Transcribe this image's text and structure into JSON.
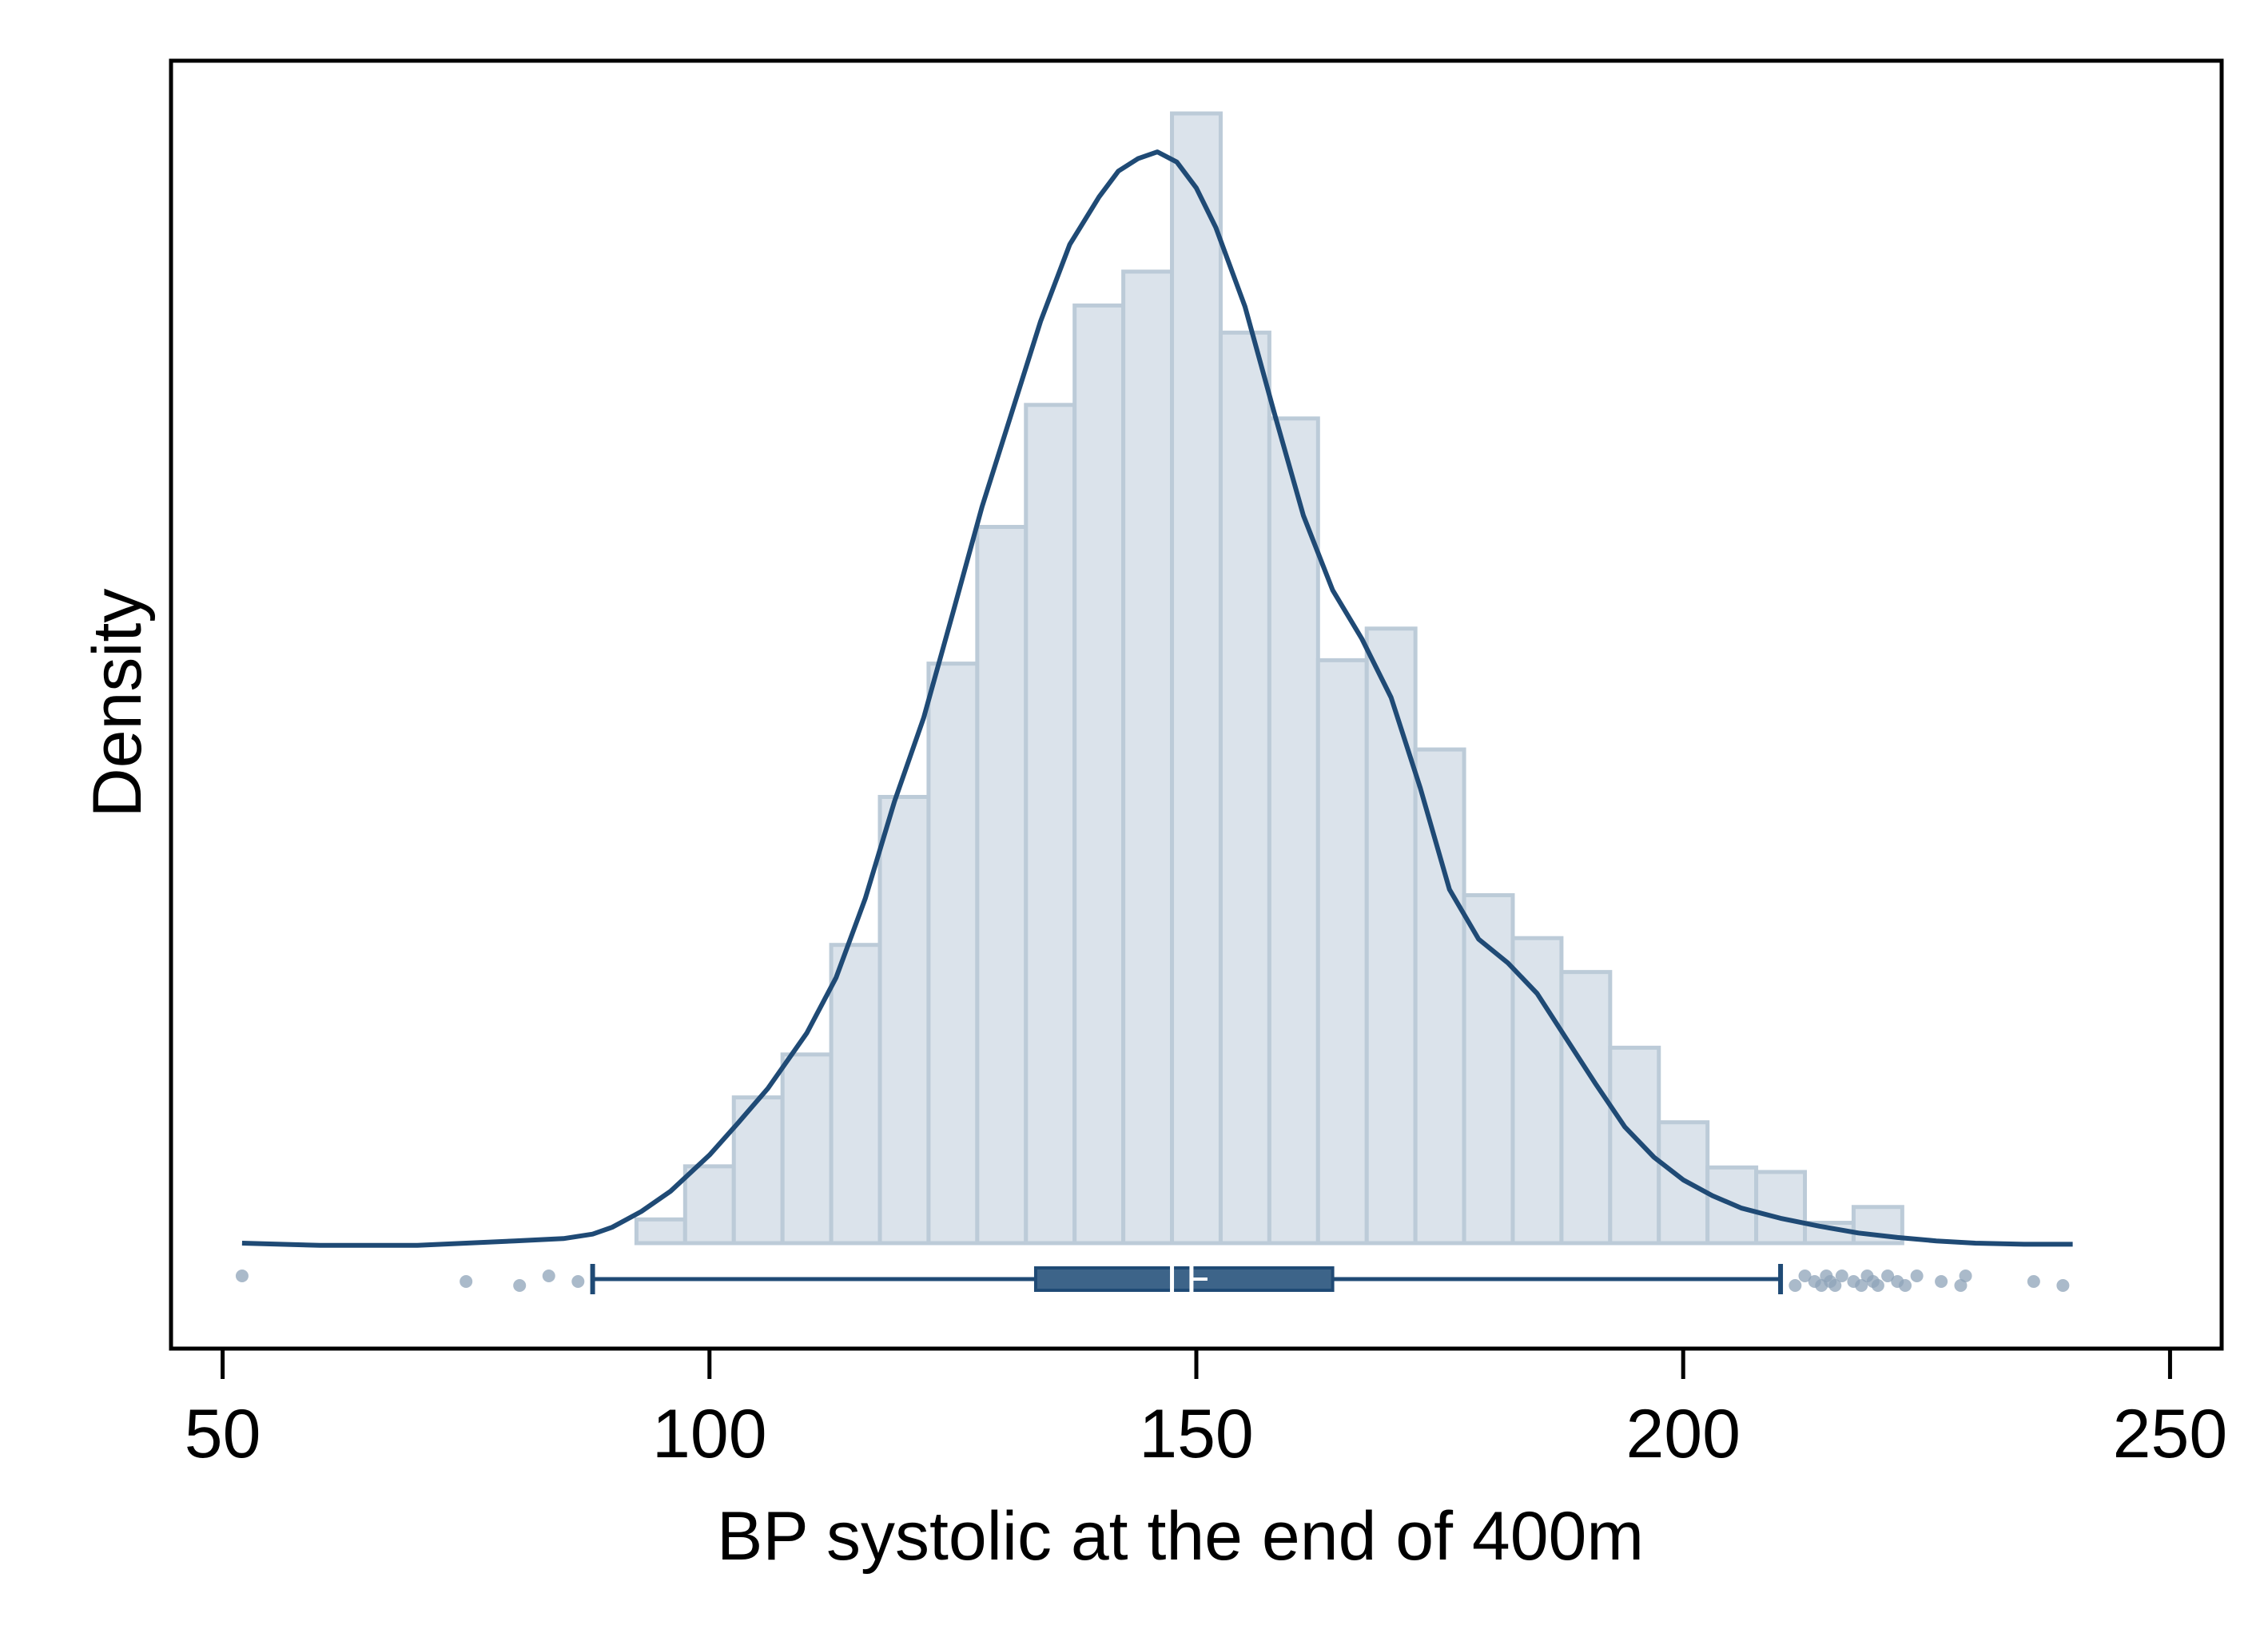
{
  "chart_data": {
    "type": "histogram",
    "xlabel": "BP systolic at the end of 400m",
    "ylabel": "Density",
    "xlim": [
      44.7,
      255.3
    ],
    "x_ticks": [
      50,
      100,
      150,
      200,
      250
    ],
    "y_ticks_shown": false,
    "grid": false,
    "legend": "none",
    "histogram": {
      "bin_start": 87.5,
      "bin_width": 5,
      "relative_heights": [
        0.0,
        0.021,
        0.068,
        0.129,
        0.167,
        0.264,
        0.395,
        0.513,
        0.634,
        0.742,
        0.83,
        0.86,
        1.0,
        0.806,
        0.73,
        0.516,
        0.544,
        0.437,
        0.308,
        0.27,
        0.24,
        0.173,
        0.107,
        0.067,
        0.063,
        0.018,
        0.032,
        0.0
      ]
    },
    "density_curve": {
      "x": [
        52,
        60,
        70,
        80,
        85,
        88,
        90,
        93,
        96,
        100,
        103,
        106,
        110,
        113,
        116,
        119,
        122,
        125,
        128,
        131,
        134,
        137,
        140,
        142,
        144,
        146,
        148,
        150,
        152,
        155,
        158,
        161,
        164,
        167,
        170,
        173,
        176,
        179,
        182,
        185,
        188,
        191,
        194,
        197,
        200,
        203,
        206,
        210,
        214,
        218,
        222,
        226,
        230,
        235,
        240
      ],
      "y": [
        0.0,
        -0.002,
        -0.002,
        0.002,
        0.004,
        0.008,
        0.014,
        0.028,
        0.046,
        0.078,
        0.107,
        0.137,
        0.186,
        0.235,
        0.305,
        0.391,
        0.465,
        0.558,
        0.652,
        0.734,
        0.816,
        0.884,
        0.926,
        0.949,
        0.96,
        0.966,
        0.957,
        0.934,
        0.899,
        0.829,
        0.735,
        0.644,
        0.578,
        0.535,
        0.483,
        0.403,
        0.313,
        0.269,
        0.248,
        0.221,
        0.181,
        0.141,
        0.103,
        0.076,
        0.056,
        0.042,
        0.031,
        0.022,
        0.015,
        0.009,
        0.005,
        0.002,
        0.0,
        -0.001,
        -0.001
      ]
    },
    "boxplot": {
      "whisker_low": 88,
      "q1": 133.5,
      "median": 147.5,
      "mean": 149.5,
      "q3": 164,
      "whisker_high": 210,
      "outliers": [
        52,
        75,
        80.5,
        83.5,
        86.5,
        211.5,
        212.5,
        213.5,
        214.2,
        214.7,
        215.1,
        215.6,
        216.3,
        217.5,
        218.3,
        218.9,
        219.5,
        220,
        221,
        222,
        222.8,
        224,
        226.5,
        228.5,
        229,
        236,
        239
      ]
    },
    "colors": {
      "bar_fill": "#dbe3eb",
      "bar_edge": "#bccbd8",
      "line": "#1f4a75",
      "box_fill": "#3d6489",
      "outlier": "#8ea3b8",
      "frame": "#000000"
    }
  }
}
